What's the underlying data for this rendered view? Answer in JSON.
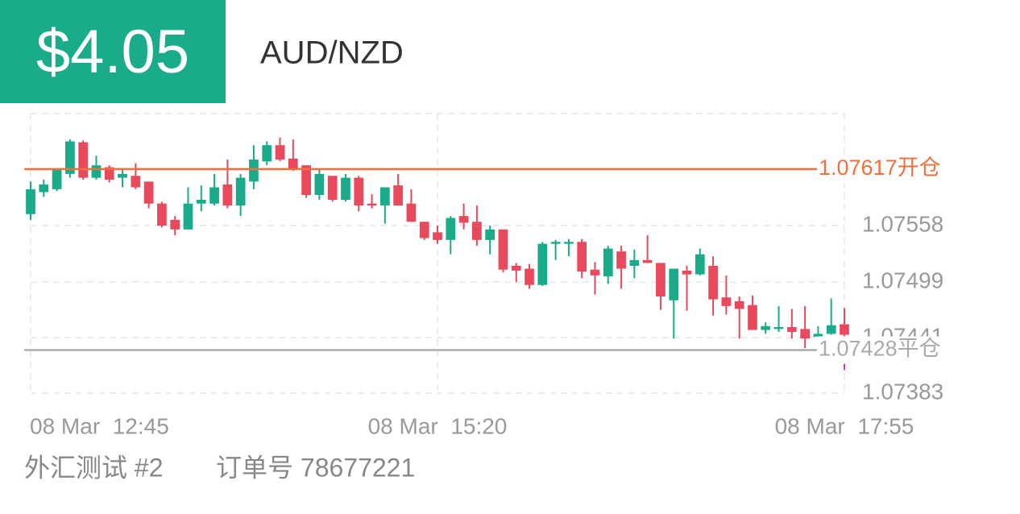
{
  "header": {
    "profit": "$4.05",
    "symbol": "AUD/NZD"
  },
  "chart_data": {
    "type": "candlestick",
    "open": [
      1.0757,
      1.07593,
      1.07596,
      1.07612,
      1.07645,
      1.07608,
      1.07619,
      1.07608,
      1.0761,
      1.07604,
      1.07581,
      1.07564,
      1.07554,
      1.07581,
      1.07581,
      1.07601,
      1.07579,
      1.07604,
      1.07625,
      1.07642,
      1.07628,
      1.07621,
      1.0759,
      1.0761,
      1.07585,
      1.07608,
      1.07581,
      1.07579,
      1.076,
      1.07581,
      1.07562,
      1.07551,
      1.07543,
      1.07568,
      1.07562,
      1.07543,
      1.07554,
      1.07516,
      1.07513,
      1.07496,
      1.07539,
      1.07539,
      1.07541,
      1.07512,
      1.07505,
      1.07531,
      1.07516,
      1.07522,
      1.07519,
      1.0748,
      1.07511,
      1.07507,
      1.07516,
      1.07483,
      1.07479,
      1.07475,
      1.07449,
      1.0745,
      1.07452,
      1.0745,
      1.07442,
      1.07445,
      1.07455
    ],
    "high": [
      1.07604,
      1.07606,
      1.07618,
      1.07648,
      1.07647,
      1.07631,
      1.07621,
      1.07617,
      1.07623,
      1.07604,
      1.07583,
      1.07568,
      1.07598,
      1.076,
      1.07612,
      1.07627,
      1.07612,
      1.07642,
      1.07646,
      1.0765,
      1.07648,
      1.07621,
      1.07617,
      1.0761,
      1.07612,
      1.0761,
      1.07591,
      1.07598,
      1.07612,
      1.07596,
      1.07562,
      1.07558,
      1.07568,
      1.07581,
      1.07579,
      1.07558,
      1.07554,
      1.07519,
      1.07518,
      1.07541,
      1.07543,
      1.07544,
      1.07544,
      1.0752,
      1.07537,
      1.07537,
      1.07533,
      1.07548,
      1.07519,
      1.07513,
      1.07516,
      1.07534,
      1.07526,
      1.07506,
      1.07484,
      1.07485,
      1.07457,
      1.07474,
      1.07471,
      1.07474,
      1.07453,
      1.07482,
      1.07472
    ],
    "low": [
      1.07564,
      1.07588,
      1.07594,
      1.07608,
      1.07606,
      1.07606,
      1.07603,
      1.07598,
      1.07596,
      1.07576,
      1.07556,
      1.07548,
      1.07554,
      1.07573,
      1.07579,
      1.07576,
      1.07568,
      1.07596,
      1.07621,
      1.07625,
      1.07615,
      1.07587,
      1.07585,
      1.07583,
      1.07583,
      1.07573,
      1.07576,
      1.0756,
      1.07579,
      1.07562,
      1.07543,
      1.07539,
      1.07528,
      1.07554,
      1.07537,
      1.07528,
      1.07509,
      1.07499,
      1.07492,
      1.07495,
      1.07522,
      1.07526,
      1.07503,
      1.07486,
      1.07497,
      1.07492,
      1.07503,
      1.07519,
      1.0747,
      1.0744,
      1.07469,
      1.07506,
      1.07464,
      1.07465,
      1.0744,
      1.07449,
      1.07445,
      1.07447,
      1.0744,
      1.0743,
      1.07436,
      1.07444,
      1.07407
    ],
    "close": [
      1.07596,
      1.07601,
      1.07617,
      1.07646,
      1.07608,
      1.07621,
      1.07606,
      1.07612,
      1.07598,
      1.07581,
      1.07558,
      1.07554,
      1.07581,
      1.07585,
      1.07598,
      1.07579,
      1.07608,
      1.07627,
      1.07642,
      1.07627,
      1.07617,
      1.0759,
      1.07612,
      1.07585,
      1.07608,
      1.07579,
      1.07579,
      1.07598,
      1.07579,
      1.07562,
      1.07545,
      1.07543,
      1.07566,
      1.07561,
      1.07543,
      1.07554,
      1.07512,
      1.07511,
      1.07496,
      1.07539,
      1.07541,
      1.07541,
      1.0751,
      1.07506,
      1.07534,
      1.07513,
      1.07522,
      1.07519,
      1.07484,
      1.07513,
      1.07507,
      1.07528,
      1.07481,
      1.07474,
      1.07471,
      1.07449,
      1.07453,
      1.07452,
      1.07447,
      1.0744,
      1.07445,
      1.07454,
      1.07444
    ],
    "up_color": "#1aab8a",
    "down_color": "#e84a5c",
    "ylim": [
      1.07383,
      1.07675
    ],
    "yticks": [
      1.07383,
      1.07441,
      1.07499,
      1.07558
    ],
    "xlim": [
      0,
      62
    ],
    "xticks": [
      {
        "value": 0,
        "label": "08 Mar  12:45"
      },
      {
        "value": 31,
        "label": "08 Mar  15:20"
      },
      {
        "value": 62,
        "label": "08 Mar  17:55"
      }
    ],
    "grid": true,
    "order_lines": [
      {
        "value": 1.07617,
        "label": "1.07617开仓",
        "color": "#f26f3c"
      },
      {
        "value": 1.07428,
        "label": "1.07428平仓",
        "color": "#aaaaaa"
      }
    ]
  },
  "footer": {
    "account": "外汇测试 #2",
    "order": "订单号 78677221"
  }
}
